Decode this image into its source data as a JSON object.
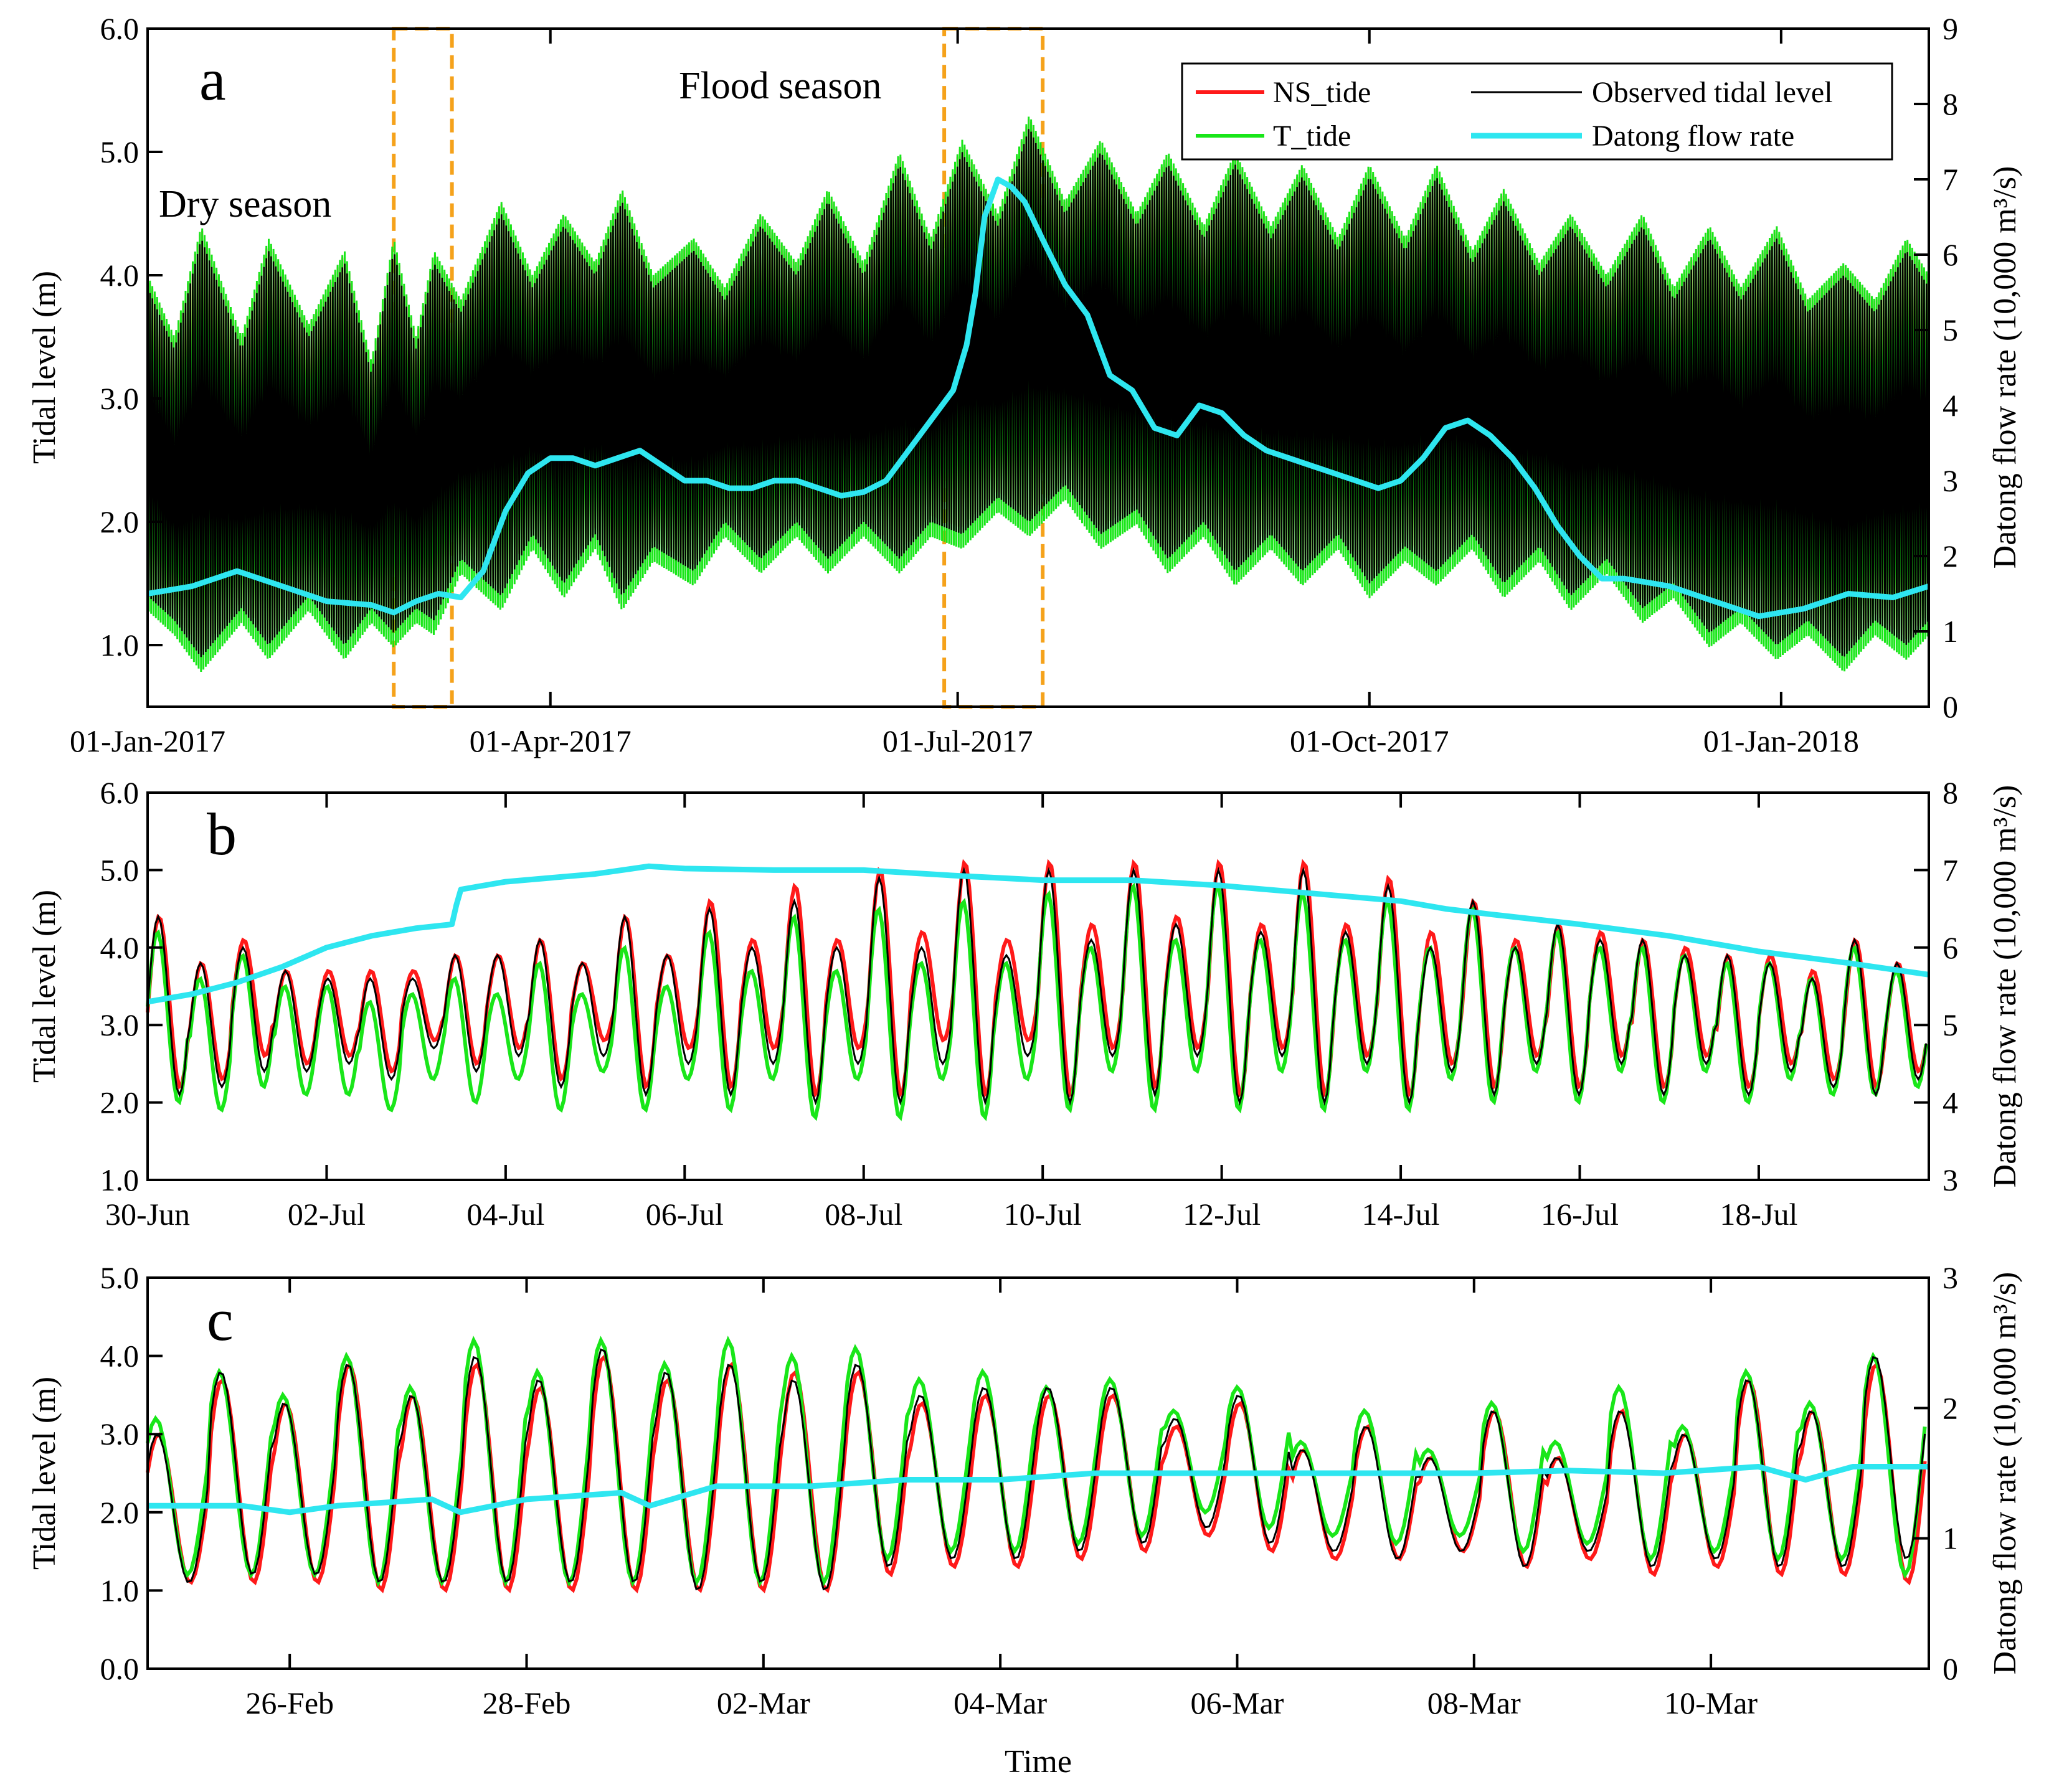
{
  "figure": {
    "xlabel": "Time",
    "colors": {
      "ns_tide": "#ff1a1a",
      "observed": "#000000",
      "t_tide": "#19e619",
      "flow": "#2ee6f0",
      "highlight": "#f5a21b"
    }
  },
  "chart_data": [
    {
      "type": "line",
      "panel": "a",
      "ylabel": "Tidal level (m)",
      "y2label": "Datong flow rate (10,000 m³/s)",
      "x_unit": "days since 01-Jan-2017",
      "xlim": [
        0,
        398
      ],
      "ylim": [
        0.5,
        6.0
      ],
      "yticks": [
        1.0,
        2.0,
        3.0,
        4.0,
        5.0,
        6.0
      ],
      "ytick_labels": [
        "1.0",
        "2.0",
        "3.0",
        "4.0",
        "5.0",
        "6.0"
      ],
      "y2lim": [
        0,
        9
      ],
      "y2ticks": [
        0,
        1,
        2,
        3,
        4,
        5,
        6,
        7,
        8,
        9
      ],
      "y2tick_labels": [
        "0",
        "1",
        "2",
        "3",
        "4",
        "5",
        "6",
        "7",
        "8",
        "9"
      ],
      "xticks": [
        0,
        90,
        181,
        273,
        365
      ],
      "xtick_labels": [
        "01-Jan-2017",
        "01-Apr-2017",
        "01-Jul-2017",
        "01-Oct-2017",
        "01-Jan-2018"
      ],
      "annotations": [
        "Dry season",
        "Flood season"
      ],
      "highlight_windows": [
        [
          55,
          68
        ],
        [
          178,
          200
        ]
      ],
      "legend": [
        "NS_tide",
        "Observed tidal level",
        "T_tide",
        "Datong flow rate"
      ],
      "spring_tide_envelope": {
        "day": [
          0,
          6,
          12,
          21,
          27,
          36,
          44,
          50,
          55,
          60,
          64,
          70,
          79,
          86,
          93,
          100,
          106,
          113,
          122,
          129,
          137,
          145,
          152,
          160,
          168,
          175,
          182,
          190,
          197,
          205,
          213,
          221,
          228,
          236,
          243,
          251,
          258,
          266,
          273,
          281,
          288,
          296,
          303,
          311,
          318,
          326,
          334,
          341,
          349,
          356,
          364,
          371,
          379,
          386,
          393,
          398
        ],
        "high": [
          3.9,
          3.4,
          4.3,
          3.4,
          4.2,
          3.5,
          4.1,
          3.2,
          4.2,
          3.4,
          4.1,
          3.7,
          4.5,
          3.9,
          4.4,
          4.0,
          4.6,
          3.9,
          4.2,
          3.8,
          4.4,
          4.0,
          4.6,
          4.0,
          4.9,
          4.2,
          5.0,
          4.4,
          5.2,
          4.5,
          5.0,
          4.4,
          4.9,
          4.3,
          4.9,
          4.3,
          4.8,
          4.2,
          4.8,
          4.2,
          4.8,
          4.1,
          4.6,
          4.0,
          4.4,
          3.9,
          4.4,
          3.8,
          4.3,
          3.8,
          4.3,
          3.7,
          4.0,
          3.7,
          4.2,
          3.9
        ],
        "low": [
          1.4,
          1.2,
          0.9,
          1.3,
          1.0,
          1.4,
          1.0,
          1.3,
          1.1,
          1.3,
          1.2,
          1.7,
          1.4,
          1.9,
          1.5,
          1.9,
          1.4,
          1.8,
          1.6,
          2.0,
          1.7,
          2.0,
          1.7,
          2.0,
          1.7,
          2.0,
          1.9,
          2.2,
          2.0,
          2.3,
          1.9,
          2.1,
          1.7,
          2.0,
          1.6,
          1.9,
          1.6,
          1.9,
          1.5,
          1.8,
          1.6,
          1.9,
          1.5,
          1.8,
          1.4,
          1.7,
          1.3,
          1.5,
          1.1,
          1.3,
          1.0,
          1.2,
          0.9,
          1.2,
          1.0,
          1.2
        ]
      },
      "datong_flow_rate": {
        "day": [
          0,
          10,
          20,
          30,
          40,
          50,
          55,
          60,
          65,
          70,
          75,
          80,
          85,
          90,
          95,
          100,
          105,
          110,
          115,
          120,
          125,
          130,
          135,
          140,
          145,
          150,
          155,
          160,
          165,
          170,
          175,
          180,
          183,
          185,
          187,
          190,
          193,
          196,
          200,
          205,
          210,
          215,
          220,
          225,
          230,
          235,
          240,
          245,
          250,
          255,
          260,
          265,
          270,
          275,
          280,
          285,
          290,
          295,
          300,
          305,
          310,
          315,
          320,
          325,
          330,
          340,
          350,
          360,
          370,
          380,
          390,
          398
        ],
        "value": [
          1.5,
          1.6,
          1.8,
          1.6,
          1.4,
          1.35,
          1.25,
          1.4,
          1.5,
          1.45,
          1.8,
          2.6,
          3.1,
          3.3,
          3.3,
          3.2,
          3.3,
          3.4,
          3.2,
          3.0,
          3.0,
          2.9,
          2.9,
          3.0,
          3.0,
          2.9,
          2.8,
          2.85,
          3.0,
          3.4,
          3.8,
          4.2,
          4.8,
          5.5,
          6.5,
          7.0,
          6.9,
          6.7,
          6.2,
          5.6,
          5.2,
          4.4,
          4.2,
          3.7,
          3.6,
          4.0,
          3.9,
          3.6,
          3.4,
          3.3,
          3.2,
          3.1,
          3.0,
          2.9,
          3.0,
          3.3,
          3.7,
          3.8,
          3.6,
          3.3,
          2.9,
          2.4,
          2.0,
          1.7,
          1.7,
          1.6,
          1.4,
          1.2,
          1.3,
          1.5,
          1.45,
          1.6
        ]
      }
    },
    {
      "type": "line",
      "panel": "b",
      "ylabel": "Tidal level (m)",
      "y2label": "Datong flow rate (10,000 m³/s)",
      "x_unit": "days since 30-Jun-2017",
      "xlim": [
        0,
        19.9
      ],
      "ylim": [
        1.0,
        6.0
      ],
      "yticks": [
        1.0,
        2.0,
        3.0,
        4.0,
        5.0,
        6.0
      ],
      "ytick_labels": [
        "1.0",
        "2.0",
        "3.0",
        "4.0",
        "5.0",
        "6.0"
      ],
      "y2lim": [
        3,
        8
      ],
      "y2ticks": [
        3,
        4,
        5,
        6,
        7,
        8
      ],
      "y2tick_labels": [
        "3",
        "4",
        "5",
        "6",
        "7",
        "8"
      ],
      "xticks": [
        0,
        2,
        4,
        6,
        8,
        10,
        12,
        14,
        16,
        18
      ],
      "xtick_labels": [
        "30-Jun",
        "02-Jul",
        "04-Jul",
        "06-Jul",
        "08-Jul",
        "10-Jul",
        "12-Jul",
        "14-Jul",
        "16-Jul",
        "18-Jul"
      ],
      "tide_phase_days": 0.25,
      "observed_high": [
        4.4,
        3.8,
        4.0,
        3.7,
        3.6,
        3.6,
        3.6,
        3.9,
        3.9,
        4.1,
        3.8,
        4.4,
        3.9,
        4.5,
        4.0,
        4.6,
        4.0,
        4.9,
        4.0,
        5.0,
        3.9,
        5.0,
        4.1,
        5.0,
        4.3,
        5.0,
        4.2,
        5.0,
        4.2,
        4.8,
        4.0,
        4.6,
        4.0,
        4.3,
        4.1,
        4.1,
        3.9,
        3.9,
        3.8,
        3.6,
        4.1,
        3.8
      ],
      "observed_low": [
        2.1,
        2.2,
        2.4,
        2.4,
        2.5,
        2.3,
        2.7,
        2.4,
        2.6,
        2.2,
        2.6,
        2.1,
        2.5,
        2.1,
        2.5,
        2.0,
        2.5,
        2.0,
        2.5,
        2.0,
        2.6,
        2.0,
        2.6,
        2.1,
        2.6,
        2.0,
        2.6,
        2.0,
        2.5,
        2.0,
        2.4,
        2.1,
        2.5,
        2.1,
        2.5,
        2.1,
        2.5,
        2.1,
        2.4,
        2.2,
        2.1,
        2.3
      ],
      "ns_tide_high": [
        4.4,
        3.8,
        4.1,
        3.7,
        3.7,
        3.7,
        3.7,
        3.9,
        3.9,
        4.1,
        3.8,
        4.4,
        3.9,
        4.6,
        4.1,
        4.8,
        4.1,
        5.0,
        4.2,
        5.1,
        4.1,
        5.1,
        4.3,
        5.1,
        4.4,
        5.1,
        4.3,
        5.1,
        4.3,
        4.9,
        4.2,
        4.6,
        4.1,
        4.3,
        4.2,
        4.1,
        4.0,
        3.9,
        3.9,
        3.7,
        4.1,
        3.8
      ],
      "ns_tide_low": [
        2.2,
        2.3,
        2.6,
        2.5,
        2.6,
        2.4,
        2.8,
        2.5,
        2.7,
        2.3,
        2.8,
        2.2,
        2.7,
        2.2,
        2.7,
        2.1,
        2.7,
        2.1,
        2.8,
        2.1,
        2.8,
        2.1,
        2.7,
        2.2,
        2.7,
        2.1,
        2.7,
        2.1,
        2.6,
        2.1,
        2.5,
        2.2,
        2.6,
        2.2,
        2.6,
        2.2,
        2.6,
        2.2,
        2.5,
        2.3,
        2.2,
        2.4
      ],
      "t_tide_high": [
        4.2,
        3.6,
        3.9,
        3.5,
        3.5,
        3.3,
        3.4,
        3.6,
        3.4,
        3.8,
        3.4,
        4.0,
        3.5,
        4.2,
        3.7,
        4.4,
        3.7,
        4.5,
        3.8,
        4.6,
        3.8,
        4.7,
        4.0,
        4.8,
        4.1,
        4.8,
        4.1,
        4.7,
        4.1,
        4.6,
        4.0,
        4.5,
        4.0,
        4.2,
        4.0,
        4.0,
        3.9,
        3.8,
        3.8,
        3.6,
        4.0,
        3.7
      ],
      "t_tide_low": [
        2.0,
        1.9,
        2.2,
        2.1,
        2.1,
        1.9,
        2.3,
        2.0,
        2.3,
        1.9,
        2.4,
        1.9,
        2.3,
        1.9,
        2.3,
        1.8,
        2.3,
        1.8,
        2.3,
        1.8,
        2.3,
        1.9,
        2.4,
        1.9,
        2.4,
        1.9,
        2.4,
        1.9,
        2.4,
        1.9,
        2.3,
        2.0,
        2.4,
        2.0,
        2.4,
        2.0,
        2.4,
        2.0,
        2.3,
        2.1,
        2.1,
        2.2
      ],
      "datong_flow_rate": {
        "day": [
          0,
          0.5,
          1,
          1.5,
          2,
          2.5,
          3,
          3.4,
          3.45,
          3.5,
          4,
          5,
          5.6,
          6,
          7,
          8,
          9,
          10,
          11,
          12,
          13,
          14,
          14.5,
          15,
          16,
          17,
          18,
          19,
          19.9
        ],
        "value": [
          5.3,
          5.4,
          5.55,
          5.75,
          6.0,
          6.15,
          6.25,
          6.3,
          6.55,
          6.75,
          6.85,
          6.95,
          7.05,
          7.02,
          7.0,
          7.0,
          6.93,
          6.87,
          6.87,
          6.8,
          6.7,
          6.6,
          6.5,
          6.43,
          6.3,
          6.15,
          5.95,
          5.8,
          5.65
        ]
      }
    },
    {
      "type": "line",
      "panel": "c",
      "ylabel": "Tidal level (m)",
      "y2label": "Datong flow rate (10,000 m³/s)",
      "x_unit": "days since 25-Feb-2017",
      "xlim": [
        0,
        18.8
      ],
      "ylim": [
        0.0,
        5.0
      ],
      "yticks": [
        0.0,
        1.0,
        2.0,
        3.0,
        4.0,
        5.0
      ],
      "ytick_labels": [
        "0.0",
        "1.0",
        "2.0",
        "3.0",
        "4.0",
        "5.0"
      ],
      "y2lim": [
        0,
        3
      ],
      "y2ticks": [
        0,
        1,
        2,
        3
      ],
      "y2tick_labels": [
        "0",
        "1",
        "2",
        "3"
      ],
      "xticks": [
        1.5,
        4,
        6.5,
        9,
        11.5,
        14,
        16.5
      ],
      "xtick_labels": [
        "26-Feb",
        "28-Feb",
        "02-Mar",
        "04-Mar",
        "06-Mar",
        "08-Mar",
        "10-Mar"
      ],
      "tide_phase_days": 0.15,
      "observed_high": [
        3.0,
        3.8,
        3.4,
        3.9,
        3.5,
        4.0,
        3.7,
        4.1,
        3.8,
        3.9,
        3.7,
        3.9,
        3.5,
        3.6,
        3.6,
        3.6,
        3.2,
        3.5,
        2.8,
        3.1,
        2.7,
        3.3,
        2.7,
        3.3,
        3.0,
        3.7,
        3.3,
        4.0
      ],
      "observed_low": [
        1.1,
        1.2,
        1.2,
        1.1,
        1.1,
        1.1,
        1.1,
        1.1,
        1.0,
        1.1,
        1.0,
        1.3,
        1.4,
        1.4,
        1.5,
        1.6,
        1.8,
        1.6,
        1.5,
        1.4,
        1.5,
        1.3,
        1.5,
        1.3,
        1.4,
        1.3,
        1.3,
        1.4
      ],
      "ns_tide_high": [
        3.0,
        3.7,
        3.4,
        3.9,
        3.5,
        3.9,
        3.6,
        4.0,
        3.7,
        3.9,
        3.8,
        3.8,
        3.4,
        3.5,
        3.5,
        3.5,
        3.1,
        3.4,
        2.8,
        3.1,
        2.7,
        3.3,
        2.7,
        3.3,
        3.0,
        3.7,
        3.3,
        3.9
      ],
      "ns_tide_low": [
        1.1,
        1.1,
        1.1,
        1.0,
        1.0,
        1.0,
        1.0,
        1.0,
        1.0,
        1.0,
        1.0,
        1.2,
        1.3,
        1.3,
        1.4,
        1.5,
        1.7,
        1.5,
        1.4,
        1.4,
        1.5,
        1.3,
        1.4,
        1.2,
        1.3,
        1.2,
        1.2,
        1.1
      ],
      "t_tide_high": [
        3.2,
        3.8,
        3.5,
        4.0,
        3.6,
        4.2,
        3.8,
        4.2,
        3.9,
        4.2,
        4.0,
        4.1,
        3.7,
        3.8,
        3.6,
        3.7,
        3.3,
        3.6,
        2.9,
        3.3,
        2.8,
        3.4,
        2.9,
        3.6,
        3.1,
        3.8,
        3.4,
        4.0
      ],
      "t_tide_low": [
        1.2,
        1.2,
        1.2,
        1.1,
        1.1,
        1.1,
        1.1,
        1.1,
        1.1,
        1.1,
        1.1,
        1.4,
        1.5,
        1.5,
        1.6,
        1.7,
        2.0,
        1.8,
        1.7,
        1.6,
        1.7,
        1.5,
        1.6,
        1.4,
        1.5,
        1.4,
        1.4,
        1.2
      ],
      "datong_flow_rate": {
        "day": [
          0,
          1,
          1.5,
          2,
          3,
          3.3,
          4,
          5,
          5.3,
          6,
          7,
          8,
          9,
          10,
          11,
          12,
          13,
          14,
          15,
          16,
          17,
          17.5,
          18,
          18.8
        ],
        "value": [
          1.25,
          1.25,
          1.2,
          1.25,
          1.3,
          1.2,
          1.3,
          1.35,
          1.25,
          1.4,
          1.4,
          1.45,
          1.45,
          1.5,
          1.5,
          1.5,
          1.5,
          1.5,
          1.52,
          1.5,
          1.55,
          1.45,
          1.55,
          1.55
        ]
      }
    }
  ]
}
